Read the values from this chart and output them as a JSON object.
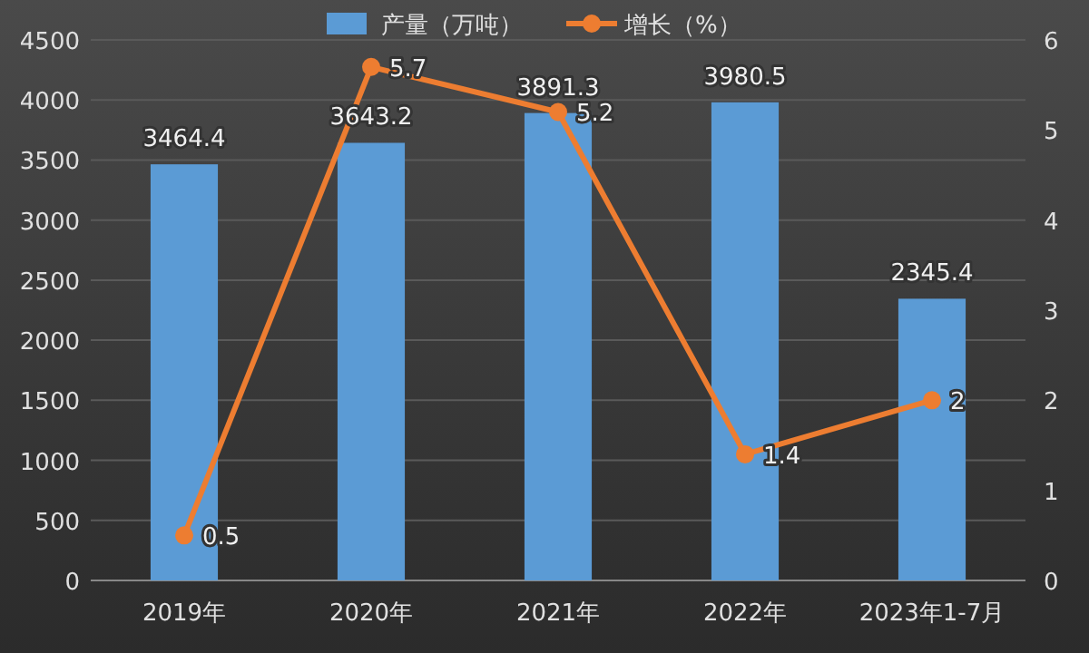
{
  "chart_data": {
    "type": "bar",
    "categories": [
      "2019年",
      "2020年",
      "2021年",
      "2022年",
      "2023年1-7月"
    ],
    "series": [
      {
        "name": "产量（万吨）",
        "color": "#5b9bd5",
        "values": [
          3464.4,
          3643.2,
          3891.3,
          3980.5,
          2345.4
        ]
      },
      {
        "name": "增长（%）",
        "type": "line",
        "axis": "y2",
        "color": "#ed7d31",
        "values": [
          0.5,
          5.7,
          5.2,
          1.4,
          2
        ]
      }
    ],
    "ylim": [
      0,
      4500
    ],
    "yticks": [
      0,
      500,
      1000,
      1500,
      2000,
      2500,
      3000,
      3500,
      4000,
      4500
    ],
    "y2lim": [
      0,
      6
    ],
    "y2ticks": [
      0,
      1,
      2,
      3,
      4,
      5,
      6
    ],
    "grid": "y",
    "legend": "top",
    "marker": "circle",
    "line_style": "solid",
    "data_labels": true
  }
}
